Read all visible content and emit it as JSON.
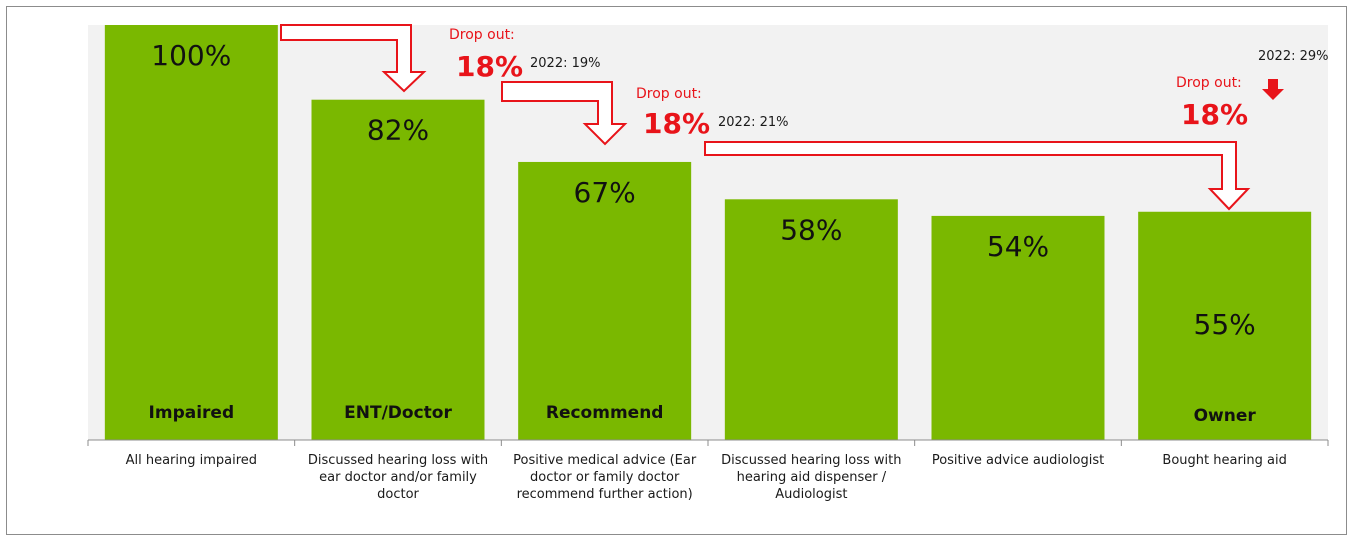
{
  "chart_data": {
    "type": "bar",
    "categories": [
      "All hearing impaired",
      "Discussed hearing loss with ear doctor and/or family doctor",
      "Positive medical advice (Ear doctor or family doctor recommend further action)",
      "Discussed hearing loss with hearing aid dispenser / Audiologist",
      "Positive advice audiologist",
      "Bought hearing aid"
    ],
    "values": [
      100,
      82,
      67,
      58,
      54,
      55
    ],
    "value_labels": [
      "100%",
      "82%",
      "67%",
      "58%",
      "54%",
      "55%"
    ],
    "inner_labels": [
      "Impaired",
      "ENT/Doctor",
      "Recommend",
      "",
      "",
      "Owner"
    ],
    "ylim": [
      0,
      100
    ],
    "bar_color": "#7ab800",
    "plot_background": "#f2f2f2",
    "annotations": [
      {
        "label": "Drop out:",
        "value": "18%",
        "previous": "2022: 19%"
      },
      {
        "label": "Drop out:",
        "value": "18%",
        "previous": "2022: 21%"
      },
      {
        "label": "Drop out:",
        "value": "18%",
        "previous": "2022: 29%"
      }
    ],
    "annotation_color": "#e8141a"
  }
}
